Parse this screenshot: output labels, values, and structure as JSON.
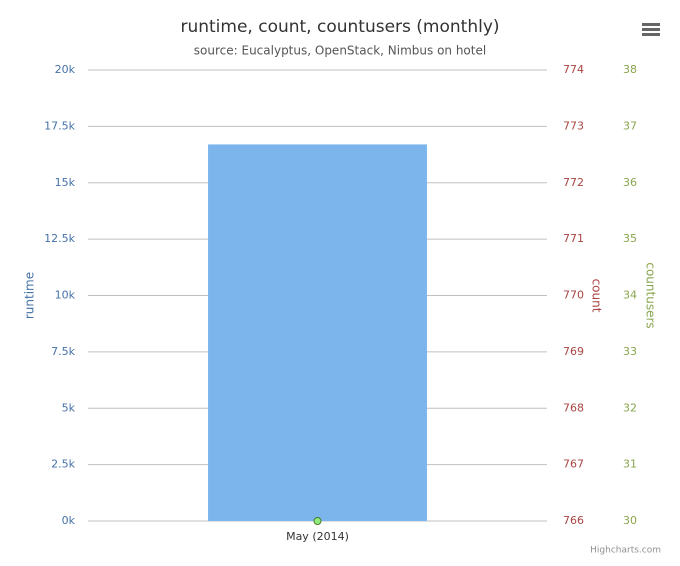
{
  "chart_data": {
    "type": "bar",
    "title": "runtime, count, countusers (monthly)",
    "subtitle": "source: Eucalyptus, OpenStack, Nimbus on hotel",
    "categories": [
      "May (2014)"
    ],
    "series": [
      {
        "name": "runtime",
        "type": "bar",
        "color": "#7cb5ec",
        "values": [
          16700
        ]
      },
      {
        "name": "countusers",
        "type": "line",
        "color": "#90ed7d",
        "axis": "y3",
        "values": [
          30
        ]
      }
    ],
    "ylabel": "runtime",
    "y_color": "#4572a7",
    "ylim": [
      0,
      20000
    ],
    "yticks": [
      {
        "value": 0,
        "label": "0k"
      },
      {
        "value": 2500,
        "label": "2.5k"
      },
      {
        "value": 5000,
        "label": "5k"
      },
      {
        "value": 7500,
        "label": "7.5k"
      },
      {
        "value": 10000,
        "label": "10k"
      },
      {
        "value": 12500,
        "label": "12.5k"
      },
      {
        "value": 15000,
        "label": "15k"
      },
      {
        "value": 17500,
        "label": "17.5k"
      },
      {
        "value": 20000,
        "label": "20k"
      }
    ],
    "y2label": "count",
    "y2_color": "#aa4643",
    "y2lim": [
      766,
      774
    ],
    "y2ticks": [
      766,
      767,
      768,
      769,
      770,
      771,
      772,
      773,
      774
    ],
    "y3label": "countusers",
    "y3_color": "#89a54e",
    "y3lim": [
      30,
      38
    ],
    "y3ticks": [
      30,
      31,
      32,
      33,
      34,
      35,
      36,
      37,
      38
    ],
    "grid": true,
    "credits": "Highcharts.com"
  }
}
